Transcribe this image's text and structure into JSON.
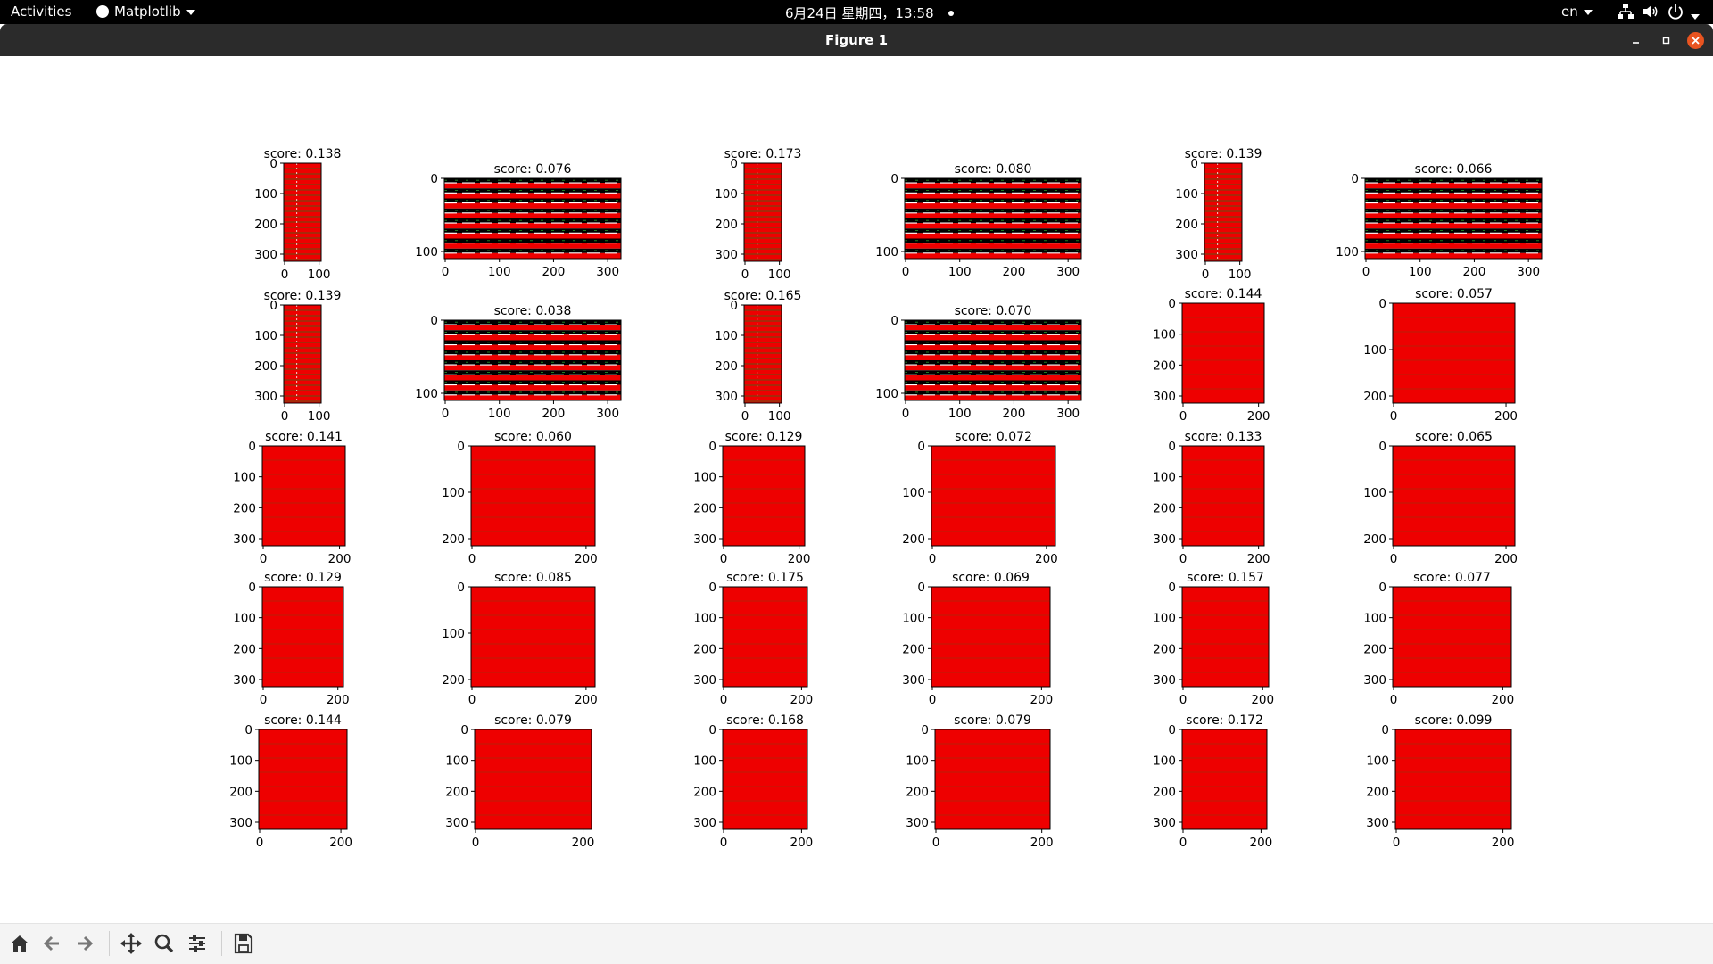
{
  "topbar": {
    "activities": "Activities",
    "app_menu": "Matplotlib",
    "clock": "6月24日 星期四，13:58",
    "language": "en"
  },
  "window": {
    "title": "Figure 1"
  },
  "colors": {
    "fill": "#ee0000",
    "stripe": "#1f7a1f",
    "frame": "#000000",
    "background": "#ffffff"
  },
  "toolbar": {
    "buttons": [
      {
        "name": "home-icon",
        "label": "Home"
      },
      {
        "name": "back-icon",
        "label": "Back"
      },
      {
        "name": "forward-icon",
        "label": "Forward"
      },
      {
        "name": "pan-icon",
        "label": "Pan"
      },
      {
        "name": "zoom-icon",
        "label": "Zoom"
      },
      {
        "name": "configure-subplots-icon",
        "label": "Configure subplots"
      },
      {
        "name": "save-icon",
        "label": "Save"
      }
    ]
  },
  "subplots": [
    {
      "title": "score: 0.138",
      "style": "striped",
      "yticks": [
        "0",
        "100",
        "200",
        "300"
      ],
      "xticks": [
        "0",
        "100"
      ]
    },
    {
      "title": "score: 0.076",
      "style": "horizontal-bands",
      "yticks": [
        "0",
        "100"
      ],
      "xticks": [
        "0",
        "100",
        "200",
        "300"
      ]
    },
    {
      "title": "score: 0.173",
      "style": "striped",
      "yticks": [
        "0",
        "100",
        "200",
        "300"
      ],
      "xticks": [
        "0",
        "100"
      ]
    },
    {
      "title": "score: 0.080",
      "style": "horizontal-bands",
      "yticks": [
        "0",
        "100"
      ],
      "xticks": [
        "0",
        "100",
        "200",
        "300"
      ]
    },
    {
      "title": "score: 0.139",
      "style": "striped",
      "yticks": [
        "0",
        "100",
        "200",
        "300"
      ],
      "xticks": [
        "0",
        "100"
      ]
    },
    {
      "title": "score: 0.066",
      "style": "horizontal-bands",
      "yticks": [
        "0",
        "100"
      ],
      "xticks": [
        "0",
        "100",
        "200",
        "300"
      ]
    },
    {
      "title": "score: 0.139",
      "style": "striped",
      "yticks": [
        "0",
        "100",
        "200",
        "300"
      ],
      "xticks": [
        "0",
        "100"
      ]
    },
    {
      "title": "score: 0.038",
      "style": "horizontal-bands",
      "yticks": [
        "0",
        "100"
      ],
      "xticks": [
        "0",
        "100",
        "200",
        "300"
      ]
    },
    {
      "title": "score: 0.165",
      "style": "striped",
      "yticks": [
        "0",
        "100",
        "200",
        "300"
      ],
      "xticks": [
        "0",
        "100"
      ]
    },
    {
      "title": "score: 0.070",
      "style": "horizontal-bands",
      "yticks": [
        "0",
        "100"
      ],
      "xticks": [
        "0",
        "100",
        "200",
        "300"
      ]
    },
    {
      "title": "score: 0.144",
      "style": "solid",
      "yticks": [
        "0",
        "100",
        "200",
        "300"
      ],
      "xticks": [
        "0",
        "200"
      ]
    },
    {
      "title": "score: 0.057",
      "style": "solid",
      "yticks": [
        "0",
        "100",
        "200"
      ],
      "xticks": [
        "0",
        "200"
      ]
    },
    {
      "title": "score: 0.141",
      "style": "solid",
      "yticks": [
        "0",
        "100",
        "200",
        "300"
      ],
      "xticks": [
        "0",
        "200"
      ]
    },
    {
      "title": "score: 0.060",
      "style": "solid",
      "yticks": [
        "0",
        "100",
        "200"
      ],
      "xticks": [
        "0",
        "200"
      ]
    },
    {
      "title": "score: 0.129",
      "style": "solid",
      "yticks": [
        "0",
        "100",
        "200",
        "300"
      ],
      "xticks": [
        "0",
        "200"
      ]
    },
    {
      "title": "score: 0.072",
      "style": "solid",
      "yticks": [
        "0",
        "100",
        "200"
      ],
      "xticks": [
        "0",
        "200"
      ]
    },
    {
      "title": "score: 0.133",
      "style": "solid",
      "yticks": [
        "0",
        "100",
        "200",
        "300"
      ],
      "xticks": [
        "0",
        "200"
      ]
    },
    {
      "title": "score: 0.065",
      "style": "solid",
      "yticks": [
        "0",
        "100",
        "200"
      ],
      "xticks": [
        "0",
        "200"
      ]
    },
    {
      "title": "score: 0.129",
      "style": "solid",
      "yticks": [
        "0",
        "100",
        "200",
        "300"
      ],
      "xticks": [
        "0",
        "200"
      ]
    },
    {
      "title": "score: 0.085",
      "style": "solid",
      "yticks": [
        "0",
        "100",
        "200"
      ],
      "xticks": [
        "0",
        "200"
      ]
    },
    {
      "title": "score: 0.175",
      "style": "solid",
      "yticks": [
        "0",
        "100",
        "200",
        "300"
      ],
      "xticks": [
        "0",
        "200"
      ]
    },
    {
      "title": "score: 0.069",
      "style": "solid",
      "yticks": [
        "0",
        "100",
        "200",
        "300"
      ],
      "xticks": [
        "0",
        "200"
      ]
    },
    {
      "title": "score: 0.157",
      "style": "solid",
      "yticks": [
        "0",
        "100",
        "200",
        "300"
      ],
      "xticks": [
        "0",
        "200"
      ]
    },
    {
      "title": "score: 0.077",
      "style": "solid",
      "yticks": [
        "0",
        "100",
        "200",
        "300"
      ],
      "xticks": [
        "0",
        "200"
      ]
    },
    {
      "title": "score: 0.144",
      "style": "solid",
      "yticks": [
        "0",
        "100",
        "200",
        "300"
      ],
      "xticks": [
        "0",
        "200"
      ]
    },
    {
      "title": "score: 0.079",
      "style": "solid",
      "yticks": [
        "0",
        "100",
        "200",
        "300"
      ],
      "xticks": [
        "0",
        "200"
      ]
    },
    {
      "title": "score: 0.168",
      "style": "solid",
      "yticks": [
        "0",
        "100",
        "200",
        "300"
      ],
      "xticks": [
        "0",
        "200"
      ]
    },
    {
      "title": "score: 0.079",
      "style": "solid",
      "yticks": [
        "0",
        "100",
        "200",
        "300"
      ],
      "xticks": [
        "0",
        "200"
      ]
    },
    {
      "title": "score: 0.172",
      "style": "solid",
      "yticks": [
        "0",
        "100",
        "200",
        "300"
      ],
      "xticks": [
        "0",
        "200"
      ]
    },
    {
      "title": "score: 0.099",
      "style": "solid",
      "yticks": [
        "0",
        "100",
        "200",
        "300"
      ],
      "xticks": [
        "0",
        "200"
      ]
    }
  ]
}
